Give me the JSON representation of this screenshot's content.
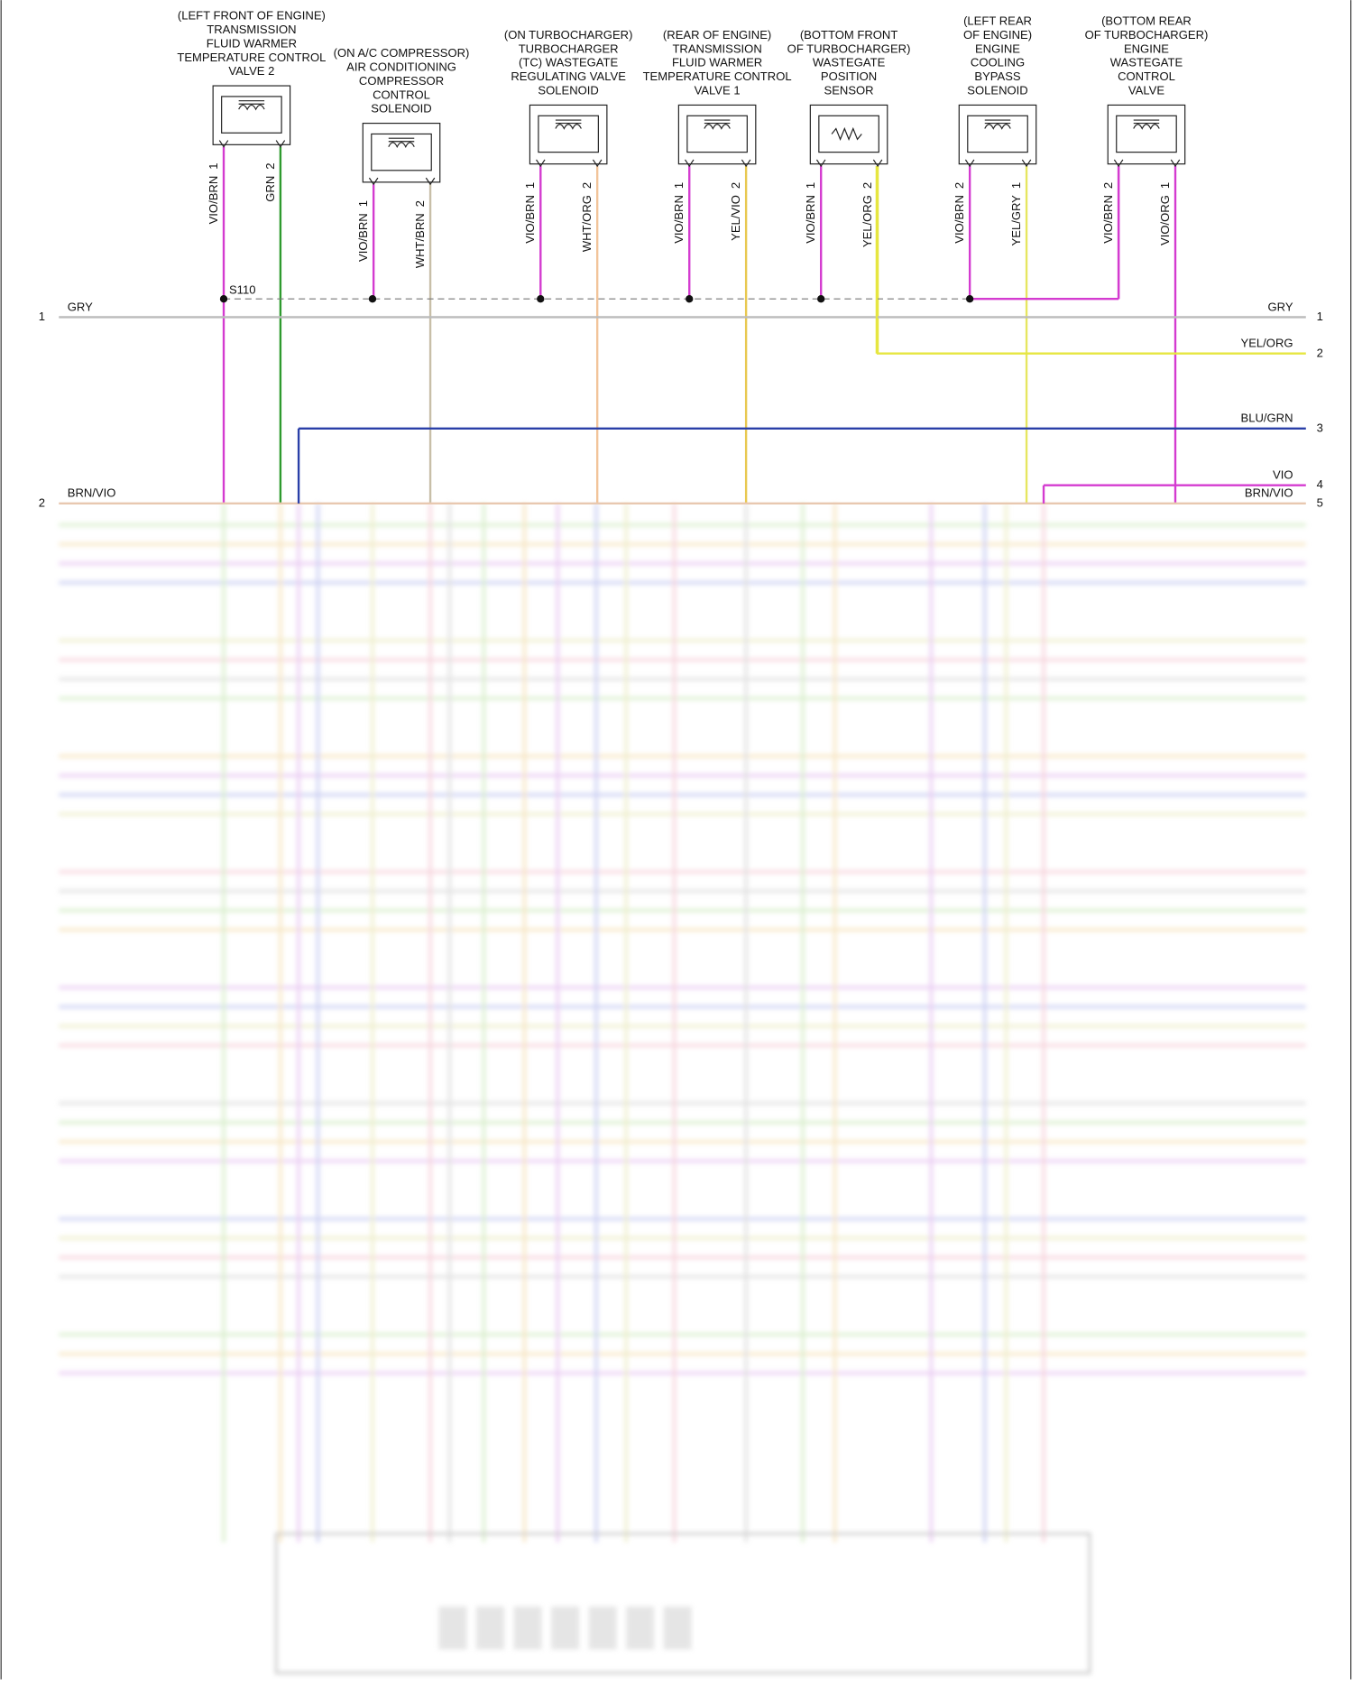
{
  "components": [
    {
      "label": [
        "(LEFT FRONT OF ENGINE)",
        "TRANSMISSION",
        "FLUID WARMER",
        "TEMPERATURE CONTROL",
        "VALVE 2"
      ],
      "pins": [
        {
          "wire": "VIO/BRN",
          "pin": "1"
        },
        {
          "wire": "GRN",
          "pin": "2"
        }
      ]
    },
    {
      "label": [
        "(ON A/C COMPRESSOR)",
        "AIR CONDITIONING",
        "COMPRESSOR",
        "CONTROL",
        "SOLENOID"
      ],
      "pins": [
        {
          "wire": "VIO/BRN",
          "pin": "1"
        },
        {
          "wire": "WHT/BRN",
          "pin": "2"
        }
      ]
    },
    {
      "label": [
        "(ON TURBOCHARGER)",
        "TURBOCHARGER",
        "(TC) WASTEGATE",
        "REGULATING VALVE",
        "SOLENOID"
      ],
      "pins": [
        {
          "wire": "VIO/BRN",
          "pin": "1"
        },
        {
          "wire": "WHT/ORG",
          "pin": "2"
        }
      ]
    },
    {
      "label": [
        "(REAR OF ENGINE)",
        "TRANSMISSION",
        "FLUID WARMER",
        "TEMPERATURE CONTROL",
        "VALVE 1"
      ],
      "pins": [
        {
          "wire": "VIO/BRN",
          "pin": "1"
        },
        {
          "wire": "YEL/VIO",
          "pin": "2"
        }
      ]
    },
    {
      "label": [
        "(BOTTOM FRONT",
        "OF TURBOCHARGER)",
        "WASTEGATE",
        "POSITION",
        "SENSOR"
      ],
      "pins": [
        {
          "wire": "VIO/BRN",
          "pin": "1"
        },
        {
          "wire": "YEL/ORG",
          "pin": "2"
        }
      ]
    },
    {
      "label": [
        "(LEFT REAR",
        "OF ENGINE)",
        "ENGINE",
        "COOLING",
        "BYPASS",
        "SOLENOID"
      ],
      "pins": [
        {
          "wire": "VIO/BRN",
          "pin": "2"
        },
        {
          "wire": "YEL/GRY",
          "pin": "1"
        }
      ]
    },
    {
      "label": [
        "(BOTTOM REAR",
        "OF TURBOCHARGER)",
        "ENGINE",
        "WASTEGATE",
        "CONTROL",
        "VALVE"
      ],
      "pins": [
        {
          "wire": "VIO/BRN",
          "pin": "2"
        },
        {
          "wire": "VIO/ORG",
          "pin": "1"
        }
      ]
    }
  ],
  "splice": "S110",
  "bus": [
    {
      "left_num": "1",
      "left_wire": "GRY",
      "right_wire": "GRY",
      "right_num": "1"
    },
    {
      "right_wire": "YEL/ORG",
      "right_num": "2"
    },
    {
      "right_wire": "BLU/GRN",
      "right_num": "3"
    },
    {
      "right_wire": "VIO",
      "right_num": "4"
    },
    {
      "left_num": "2",
      "left_wire": "BRN/VIO",
      "right_wire": "BRN/VIO",
      "right_num": "5"
    }
  ]
}
